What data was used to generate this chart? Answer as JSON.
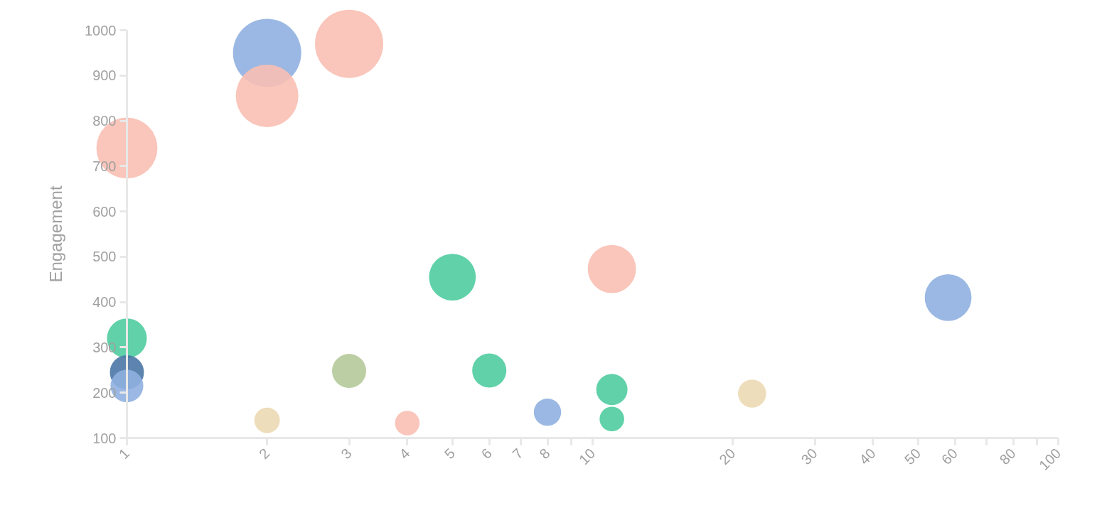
{
  "chart_data": {
    "type": "bubble",
    "ylabel": "Engagement",
    "x": [
      2,
      3,
      2,
      1,
      5,
      11,
      58,
      1,
      1,
      1,
      3,
      6,
      11,
      22,
      8,
      2,
      4,
      11
    ],
    "values": [
      950,
      970,
      855,
      740,
      455,
      473,
      410,
      320,
      245,
      215,
      248,
      249,
      207,
      198,
      157,
      139,
      133,
      142
    ],
    "sizes": [
      1,
      1,
      0.84,
      0.8,
      0.47,
      0.5,
      0.47,
      0.34,
      0.25,
      0.23,
      0.25,
      0.25,
      0.21,
      0.17,
      0.16,
      0.14,
      0.13,
      0.13
    ],
    "colors": [
      "#8fb0e0",
      "#f9bfb3",
      "#f9bfb3",
      "#f9bfb3",
      "#4fcca0",
      "#f9bfb3",
      "#8fb0e0",
      "#4fcca0",
      "#4a77a5",
      "#8fb0e0",
      "#b5c99a",
      "#4fcca0",
      "#4fcca0",
      "#ecd9b3",
      "#8fb0e0",
      "#ecd9b3",
      "#f9bfb3",
      "#4fcca0"
    ],
    "log": "x",
    "xlim": [
      1,
      100
    ],
    "ylim": [
      100,
      1000
    ],
    "xticks": [
      1,
      2,
      3,
      4,
      5,
      6,
      7,
      8,
      {
        "value": 9,
        "label": null
      },
      10,
      20,
      30,
      40,
      50,
      60,
      {
        "value": 70,
        "label": null
      },
      80,
      {
        "value": 90,
        "label": null
      },
      100
    ],
    "yticks": [
      100,
      200,
      300,
      400,
      500,
      600,
      700,
      800,
      900,
      1000
    ],
    "grid": false
  }
}
